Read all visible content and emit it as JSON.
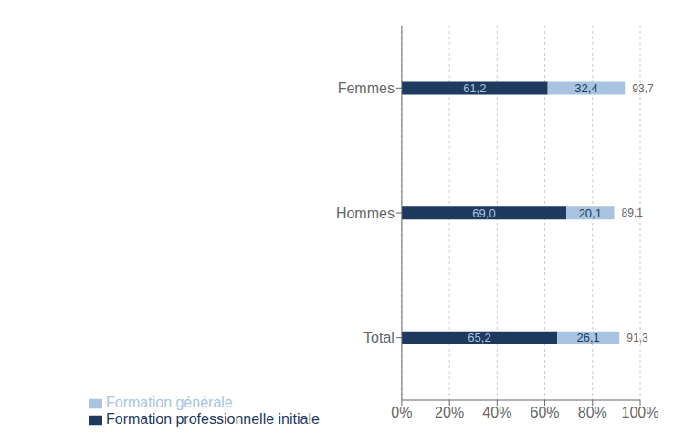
{
  "chart_data": {
    "type": "bar",
    "orientation": "horizontal",
    "stacked": true,
    "categories": [
      "Total",
      "Hommes",
      "Femmes"
    ],
    "series": [
      {
        "name": "Formation professionnelle initiale",
        "color": "#1e3a5f",
        "values": [
          65.2,
          69.0,
          61.2
        ],
        "value_labels": [
          "65,2",
          "69,0",
          "61,2"
        ]
      },
      {
        "name": "Formation générale",
        "color": "#a8c4e0",
        "values": [
          26.1,
          20.1,
          32.4
        ],
        "value_labels": [
          "26,1",
          "20,1",
          "32,4"
        ]
      }
    ],
    "totals": [
      91.3,
      89.1,
      93.7
    ],
    "total_labels": [
      "91,3",
      "89,1",
      "93,7"
    ],
    "xlim": [
      0,
      100
    ],
    "xticks": [
      {
        "value": 0,
        "label": "0%"
      },
      {
        "value": 20,
        "label": "20%"
      },
      {
        "value": 40,
        "label": "40%"
      },
      {
        "value": 60,
        "label": "60%"
      },
      {
        "value": 80,
        "label": "80%"
      },
      {
        "value": 100,
        "label": "100%"
      }
    ],
    "grid": true,
    "legend": "bottom",
    "data_labels": true
  }
}
